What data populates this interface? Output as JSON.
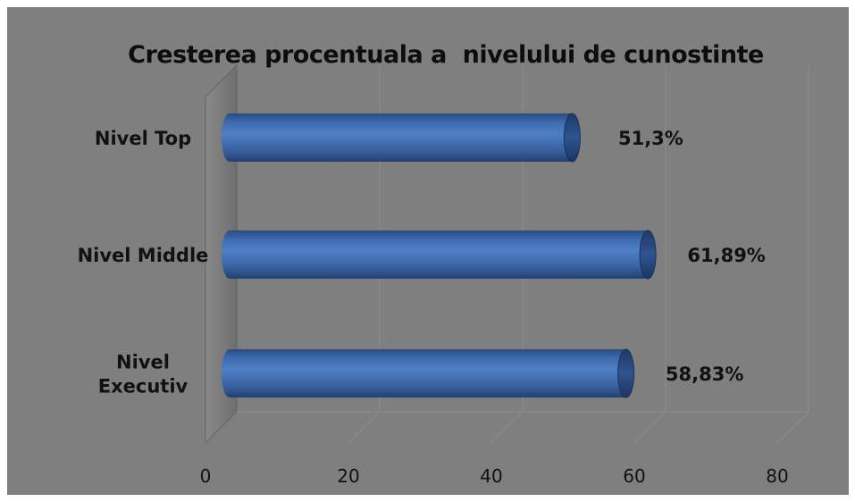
{
  "chart_data": {
    "type": "bar",
    "orientation": "horizontal",
    "title": "Cresterea procentuala a  nivelului de cunostinte",
    "categories": [
      [
        "Nivel Top"
      ],
      [
        "Nivel Middle"
      ],
      [
        "Nivel",
        "Executiv"
      ]
    ],
    "values": [
      51.3,
      61.89,
      58.83
    ],
    "data_labels": [
      "51,3%",
      "61,89%",
      "58,83%"
    ],
    "xlim": [
      0,
      80
    ],
    "xticks": [
      0,
      20,
      40,
      60,
      80
    ],
    "grid": true,
    "legend": "none",
    "bar_color": "#3a62a2",
    "background_color": "#7f7f7f"
  }
}
